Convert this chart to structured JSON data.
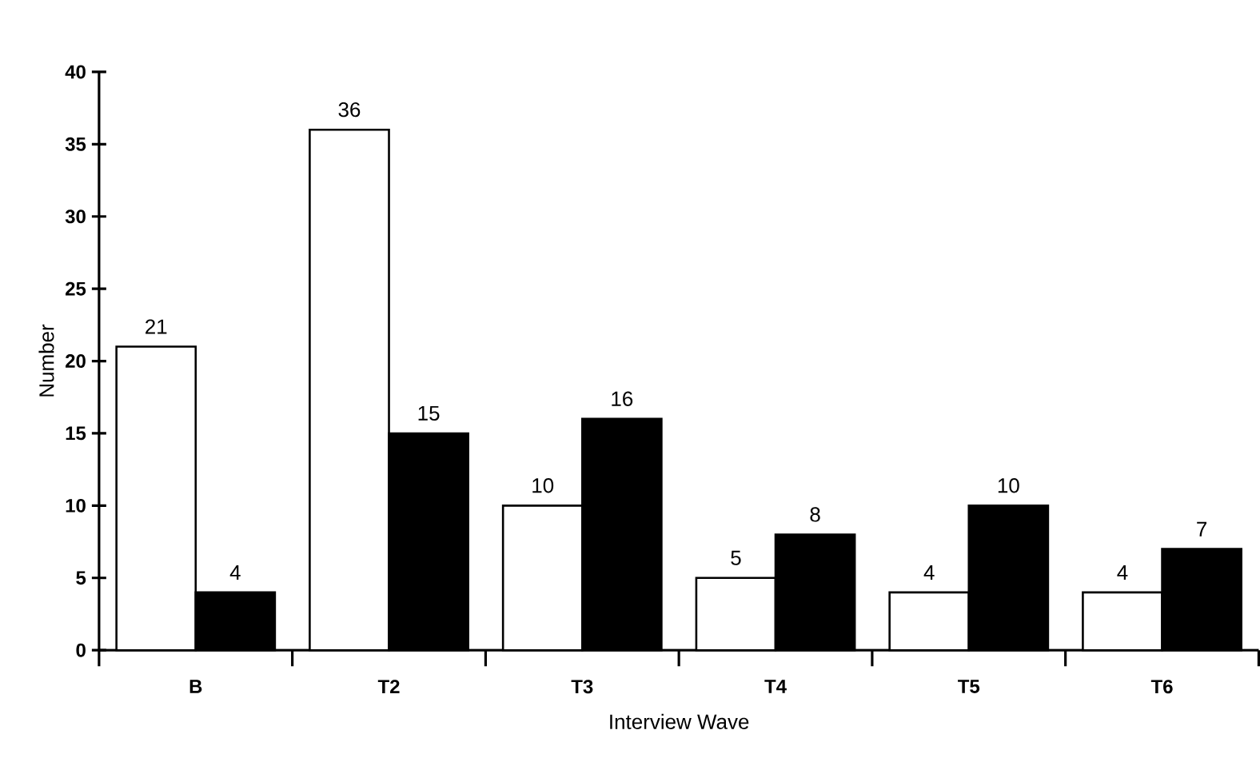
{
  "chart_data": {
    "type": "bar",
    "xlabel": "Interview Wave",
    "ylabel": "Number",
    "categories": [
      "B",
      "T2",
      "T3",
      "T4",
      "T5",
      "T6"
    ],
    "series": [
      {
        "color": "#ffffff",
        "values": [
          21,
          36,
          10,
          5,
          4,
          4
        ]
      },
      {
        "color": "#000000",
        "values": [
          4,
          15,
          16,
          8,
          10,
          7
        ]
      }
    ],
    "ylim": [
      0,
      40
    ],
    "yticks": [
      0,
      5,
      10,
      15,
      20,
      25,
      30,
      35,
      40
    ],
    "data_labels": true,
    "grid": false
  }
}
